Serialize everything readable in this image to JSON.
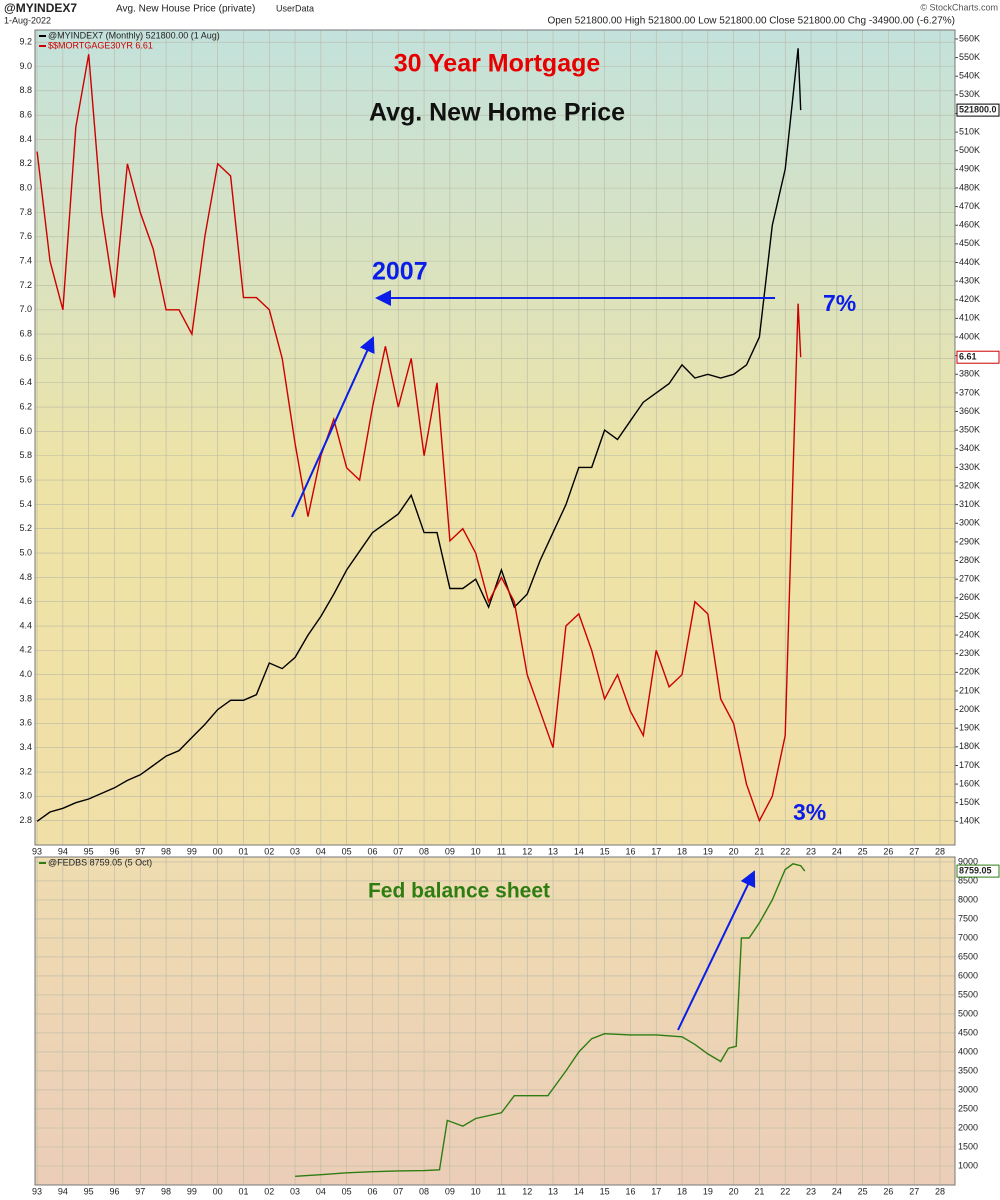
{
  "header": {
    "symbol": "@MYINDEX7",
    "description": "Avg. New House Price (private)",
    "source": "UserData",
    "date": "1-Aug-2022",
    "quote": "Open 521800.00  High 521800.00  Low 521800.00  Close 521800.00  Chg -34900.00 (-6.27%)",
    "credit": "© StockCharts.com"
  },
  "chart_data": [
    {
      "type": "line",
      "annotations": [
        "30 Year Mortgage",
        "Avg. New Home Price",
        "2007",
        "7%",
        "3%"
      ],
      "x": [
        1993,
        1993.5,
        1994,
        1994.5,
        1995,
        1995.5,
        1996,
        1996.5,
        1997,
        1997.5,
        1998,
        1998.5,
        1999,
        1999.5,
        2000,
        2000.5,
        2001,
        2001.5,
        2002,
        2002.5,
        2003,
        2003.5,
        2004,
        2004.5,
        2005,
        2005.5,
        2006,
        2006.5,
        2007,
        2007.5,
        2008,
        2008.5,
        2009,
        2009.5,
        2010,
        2010.5,
        2011,
        2011.5,
        2012,
        2012.5,
        2013,
        2013.5,
        2014,
        2014.5,
        2015,
        2015.5,
        2016,
        2016.5,
        2017,
        2017.5,
        2018,
        2018.5,
        2019,
        2019.5,
        2020,
        2020.5,
        2021,
        2021.5,
        2022,
        2022.5,
        2022.6
      ],
      "series": [
        {
          "name": "@MYINDEX7 (Monthly) 521800.00 (1 Aug)",
          "color": "#000000",
          "axis": "y2",
          "current_label": "521800.0",
          "values": [
            140000,
            145000,
            147000,
            150000,
            152000,
            155000,
            158000,
            162000,
            165000,
            170000,
            175000,
            178000,
            185000,
            192000,
            200000,
            205000,
            205000,
            208000,
            225000,
            222000,
            228000,
            240000,
            250000,
            262000,
            275000,
            285000,
            295000,
            300000,
            305000,
            315000,
            295000,
            295000,
            265000,
            265000,
            270000,
            255000,
            275000,
            255000,
            262000,
            280000,
            295000,
            310000,
            330000,
            330000,
            350000,
            345000,
            355000,
            365000,
            370000,
            375000,
            385000,
            378000,
            380000,
            378000,
            380000,
            385000,
            400000,
            460000,
            490000,
            555000,
            521800
          ]
        },
        {
          "name": "$$MORTGAGE30YR 6.61",
          "color": "#cc0000",
          "axis": "y",
          "current_label": "6.61",
          "values": [
            8.3,
            7.4,
            7.0,
            8.5,
            9.1,
            7.8,
            7.1,
            8.2,
            7.8,
            7.5,
            7.0,
            7.0,
            6.8,
            7.6,
            8.2,
            8.1,
            7.1,
            7.1,
            7.0,
            6.6,
            5.9,
            5.3,
            5.8,
            6.1,
            5.7,
            5.6,
            6.2,
            6.7,
            6.2,
            6.6,
            5.8,
            6.4,
            5.1,
            5.2,
            5.0,
            4.6,
            4.8,
            4.6,
            4.0,
            3.7,
            3.4,
            4.4,
            4.5,
            4.2,
            3.8,
            4.0,
            3.7,
            3.5,
            4.2,
            3.9,
            4.0,
            4.6,
            4.5,
            3.8,
            3.6,
            3.1,
            2.8,
            3.0,
            3.5,
            7.05,
            6.61
          ]
        }
      ],
      "xlim": [
        1992.92,
        2028.58
      ],
      "xticks": [
        {
          "value": 1993,
          "label": "93"
        },
        {
          "value": 1994,
          "label": "94"
        },
        {
          "value": 1995,
          "label": "95"
        },
        {
          "value": 1996,
          "label": "96"
        },
        {
          "value": 1997,
          "label": "97"
        },
        {
          "value": 1998,
          "label": "98"
        },
        {
          "value": 1999,
          "label": "99"
        },
        {
          "value": 2000,
          "label": "00"
        },
        {
          "value": 2001,
          "label": "01"
        },
        {
          "value": 2002,
          "label": "02"
        },
        {
          "value": 2003,
          "label": "03"
        },
        {
          "value": 2004,
          "label": "04"
        },
        {
          "value": 2005,
          "label": "05"
        },
        {
          "value": 2006,
          "label": "06"
        },
        {
          "value": 2007,
          "label": "07"
        },
        {
          "value": 2008,
          "label": "08"
        },
        {
          "value": 2009,
          "label": "09"
        },
        {
          "value": 2010,
          "label": "10"
        },
        {
          "value": 2011,
          "label": "11"
        },
        {
          "value": 2012,
          "label": "12"
        },
        {
          "value": 2013,
          "label": "13"
        },
        {
          "value": 2014,
          "label": "14"
        },
        {
          "value": 2015,
          "label": "15"
        },
        {
          "value": 2016,
          "label": "16"
        },
        {
          "value": 2017,
          "label": "17"
        },
        {
          "value": 2018,
          "label": "18"
        },
        {
          "value": 2019,
          "label": "19"
        },
        {
          "value": 2020,
          "label": "20"
        },
        {
          "value": 2021,
          "label": "21"
        },
        {
          "value": 2022,
          "label": "22"
        },
        {
          "value": 2023,
          "label": "23"
        },
        {
          "value": 2024,
          "label": "24"
        },
        {
          "value": 2025,
          "label": "25"
        },
        {
          "value": 2026,
          "label": "26"
        },
        {
          "value": 2027,
          "label": "27"
        },
        {
          "value": 2028,
          "label": "28"
        }
      ],
      "ylim": [
        2.6,
        9.3
      ],
      "yticks": [
        2.8,
        {
          "value": 3,
          "label": "3.0"
        },
        3.2,
        3.4,
        3.6,
        3.8,
        {
          "value": 4,
          "label": "4.0"
        },
        4.2,
        4.4,
        4.6,
        4.8,
        {
          "value": 5,
          "label": "5.0"
        },
        5.2,
        5.4,
        5.6,
        5.8,
        {
          "value": 6,
          "label": "6.0"
        },
        6.2,
        6.4,
        6.6,
        6.8,
        {
          "value": 7,
          "label": "7.0"
        },
        7.2,
        7.4,
        7.6,
        7.8,
        {
          "value": 8,
          "label": "8.0"
        },
        8.2,
        8.4,
        8.6,
        8.8,
        {
          "value": 9,
          "label": "9.0"
        },
        9.2
      ],
      "y_axis_side": "left",
      "y2lim": [
        127300,
        564800
      ],
      "y2ticks": [
        {
          "value": 140000,
          "label": "140K"
        },
        {
          "value": 150000,
          "label": "150K"
        },
        {
          "value": 160000,
          "label": "160K"
        },
        {
          "value": 170000,
          "label": "170K"
        },
        {
          "value": 180000,
          "label": "180K"
        },
        {
          "value": 190000,
          "label": "190K"
        },
        {
          "value": 200000,
          "label": "200K"
        },
        {
          "value": 210000,
          "label": "210K"
        },
        {
          "value": 220000,
          "label": "220K"
        },
        {
          "value": 230000,
          "label": "230K"
        },
        {
          "value": 240000,
          "label": "240K"
        },
        {
          "value": 250000,
          "label": "250K"
        },
        {
          "value": 260000,
          "label": "260K"
        },
        {
          "value": 270000,
          "label": "270K"
        },
        {
          "value": 280000,
          "label": "280K"
        },
        {
          "value": 290000,
          "label": "290K"
        },
        {
          "value": 300000,
          "label": "300K"
        },
        {
          "value": 310000,
          "label": "310K"
        },
        {
          "value": 320000,
          "label": "320K"
        },
        {
          "value": 330000,
          "label": "330K"
        },
        {
          "value": 340000,
          "label": "340K"
        },
        {
          "value": 350000,
          "label": "350K"
        },
        {
          "value": 360000,
          "label": "360K"
        },
        {
          "value": 370000,
          "label": "370K"
        },
        {
          "value": 380000,
          "label": "380K"
        },
        {
          "value": 390000,
          "label": "390K"
        },
        {
          "value": 400000,
          "label": "400K"
        },
        {
          "value": 410000,
          "label": "410K"
        },
        {
          "value": 420000,
          "label": "420K"
        },
        {
          "value": 430000,
          "label": "430K"
        },
        {
          "value": 440000,
          "label": "440K"
        },
        {
          "value": 450000,
          "label": "450K"
        },
        {
          "value": 460000,
          "label": "460K"
        },
        {
          "value": 470000,
          "label": "470K"
        },
        {
          "value": 480000,
          "label": "480K"
        },
        {
          "value": 490000,
          "label": "490K"
        },
        {
          "value": 500000,
          "label": "500K"
        },
        {
          "value": 510000,
          "label": "510K"
        },
        {
          "value": 520000,
          "label": "520K"
        },
        {
          "value": 530000,
          "label": "530K"
        },
        {
          "value": 540000,
          "label": "540K"
        },
        {
          "value": 550000,
          "label": "550K"
        },
        {
          "value": 560000,
          "label": "560K"
        }
      ],
      "grid": true
    },
    {
      "type": "line",
      "annotations": [
        "Fed balance sheet"
      ],
      "x": [
        2003,
        2004,
        2005,
        2006,
        2007,
        2008,
        2008.6,
        2008.9,
        2009.5,
        2010,
        2011,
        2011.5,
        2012,
        2012.8,
        2013.5,
        2014,
        2014.5,
        2015,
        2016,
        2017,
        2018,
        2018.5,
        2019,
        2019.5,
        2019.8,
        2020.1,
        2020.3,
        2020.6,
        2021,
        2021.5,
        2022,
        2022.3,
        2022.6,
        2022.76
      ],
      "series": [
        {
          "name": "@FEDBS 8759.05 (5 Oct)",
          "color": "#2e7d12",
          "axis": "y",
          "current_label": "8759.05",
          "values": [
            730,
            770,
            820,
            850,
            870,
            880,
            900,
            2200,
            2050,
            2250,
            2400,
            2850,
            2850,
            2850,
            3500,
            4000,
            4350,
            4480,
            4450,
            4450,
            4400,
            4200,
            3950,
            3750,
            4100,
            4150,
            7000,
            7000,
            7400,
            8000,
            8800,
            8950,
            8900,
            8759.05
          ]
        }
      ],
      "xlim": [
        1992.92,
        2028.58
      ],
      "xticks": [
        {
          "value": 1993,
          "label": "93"
        },
        {
          "value": 1994,
          "label": "94"
        },
        {
          "value": 1995,
          "label": "95"
        },
        {
          "value": 1996,
          "label": "96"
        },
        {
          "value": 1997,
          "label": "97"
        },
        {
          "value": 1998,
          "label": "98"
        },
        {
          "value": 1999,
          "label": "99"
        },
        {
          "value": 2000,
          "label": "00"
        },
        {
          "value": 2001,
          "label": "01"
        },
        {
          "value": 2002,
          "label": "02"
        },
        {
          "value": 2003,
          "label": "03"
        },
        {
          "value": 2004,
          "label": "04"
        },
        {
          "value": 2005,
          "label": "05"
        },
        {
          "value": 2006,
          "label": "06"
        },
        {
          "value": 2007,
          "label": "07"
        },
        {
          "value": 2008,
          "label": "08"
        },
        {
          "value": 2009,
          "label": "09"
        },
        {
          "value": 2010,
          "label": "10"
        },
        {
          "value": 2011,
          "label": "11"
        },
        {
          "value": 2012,
          "label": "12"
        },
        {
          "value": 2013,
          "label": "13"
        },
        {
          "value": 2014,
          "label": "14"
        },
        {
          "value": 2015,
          "label": "15"
        },
        {
          "value": 2016,
          "label": "16"
        },
        {
          "value": 2017,
          "label": "17"
        },
        {
          "value": 2018,
          "label": "18"
        },
        {
          "value": 2019,
          "label": "19"
        },
        {
          "value": 2020,
          "label": "20"
        },
        {
          "value": 2021,
          "label": "21"
        },
        {
          "value": 2022,
          "label": "22"
        },
        {
          "value": 2023,
          "label": "23"
        },
        {
          "value": 2024,
          "label": "24"
        },
        {
          "value": 2025,
          "label": "25"
        },
        {
          "value": 2026,
          "label": "26"
        },
        {
          "value": 2027,
          "label": "27"
        },
        {
          "value": 2028,
          "label": "28"
        }
      ],
      "ylim": [
        500,
        9130
      ],
      "yticks": [
        1000,
        1500,
        2000,
        2500,
        3000,
        3500,
        4000,
        4500,
        5000,
        5500,
        6000,
        6500,
        7000,
        7500,
        8000,
        8500,
        9000
      ],
      "y_axis_side": "right",
      "grid": true
    }
  ]
}
